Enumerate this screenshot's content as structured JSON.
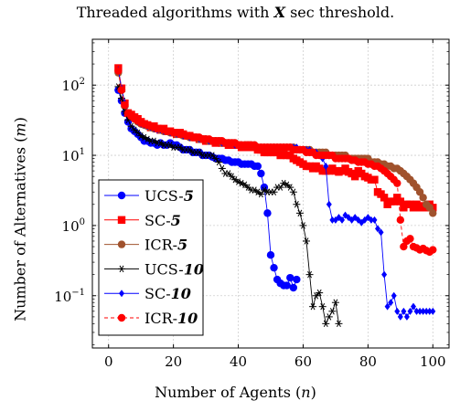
{
  "chart_data": {
    "type": "line",
    "title": {
      "before": "Threaded algorithms with ",
      "variable": "X",
      "after": " sec threshold."
    },
    "xlabel": {
      "text": "Number of Agents (",
      "var": "n",
      "close": ")"
    },
    "ylabel": {
      "text": "Number of Alternatives (",
      "var": "m",
      "close": ")"
    },
    "xlim": [
      -5,
      105
    ],
    "ylim": [
      0.018,
      450
    ],
    "yscale": "log",
    "xticks": [
      0,
      20,
      40,
      60,
      80,
      100
    ],
    "yticks": [
      {
        "value": 0.1,
        "base": "10",
        "exp": "−1"
      },
      {
        "value": 1,
        "base": "10",
        "exp": "0"
      },
      {
        "value": 10,
        "base": "10",
        "exp": "1"
      },
      {
        "value": 100,
        "base": "10",
        "exp": "2"
      }
    ],
    "grid": true,
    "legend_position": "bottom-left",
    "series": [
      {
        "name_prefix": "UCS-",
        "name_num": "5",
        "color": "#0000ff",
        "marker": "circle",
        "dashed": false,
        "x": [
          3,
          4,
          5,
          6,
          7,
          8,
          9,
          10,
          11,
          12,
          13,
          14,
          15,
          16,
          17,
          18,
          19,
          20,
          21,
          22,
          23,
          24,
          25,
          26,
          27,
          28,
          29,
          30,
          31,
          32,
          33,
          34,
          35,
          36,
          37,
          38,
          39,
          40,
          41,
          42,
          43,
          44,
          45,
          46,
          47,
          48,
          49,
          50,
          51,
          52,
          53,
          54,
          55,
          56,
          57,
          58
        ],
        "y": [
          85,
          60,
          40,
          30,
          24,
          22,
          20,
          18,
          16,
          16,
          15,
          15,
          14,
          15,
          14,
          14,
          15,
          14,
          14,
          13,
          12,
          12,
          12,
          11,
          11,
          11,
          10,
          10,
          10,
          9.5,
          9,
          9,
          9,
          8.5,
          8.5,
          8,
          8,
          8,
          7.5,
          7.5,
          7.5,
          7.5,
          7,
          7,
          5.5,
          3.5,
          1.5,
          0.38,
          0.25,
          0.17,
          0.15,
          0.14,
          0.14,
          0.18,
          0.13,
          0.17
        ]
      },
      {
        "name_prefix": "SC-",
        "name_num": "5",
        "color": "#ff0000",
        "marker": "square",
        "dashed": false,
        "x": [
          3,
          4,
          5,
          6,
          7,
          8,
          9,
          10,
          11,
          12,
          13,
          14,
          15,
          16,
          17,
          18,
          19,
          20,
          21,
          22,
          23,
          24,
          25,
          26,
          27,
          28,
          29,
          30,
          31,
          32,
          33,
          34,
          35,
          36,
          37,
          38,
          39,
          40,
          41,
          42,
          43,
          44,
          45,
          46,
          47,
          48,
          49,
          50,
          51,
          52,
          53,
          54,
          55,
          56,
          57,
          58,
          59,
          60,
          61,
          62,
          63,
          64,
          65,
          66,
          67,
          68,
          69,
          70,
          71,
          72,
          73,
          74,
          75,
          76,
          77,
          78,
          79,
          80,
          81,
          82,
          83,
          84,
          85,
          86,
          87,
          88,
          89,
          90,
          91,
          92,
          93,
          94,
          95,
          96,
          97,
          98,
          99,
          100
        ],
        "y": [
          175,
          90,
          55,
          40,
          38,
          35,
          33,
          30,
          28,
          27,
          25,
          26,
          24,
          23,
          24,
          22,
          22,
          21,
          20,
          21,
          20,
          19,
          19,
          18,
          18,
          17,
          17,
          16,
          16,
          16,
          15,
          16,
          15,
          15,
          14,
          15,
          14,
          14,
          13,
          13,
          14,
          13,
          13,
          12,
          12,
          11,
          11,
          11,
          11,
          11,
          10,
          11,
          10,
          10,
          9,
          8.5,
          8,
          7.5,
          7,
          7,
          6.5,
          7,
          6.5,
          6,
          6,
          6,
          6.5,
          6,
          5.8,
          6,
          6.5,
          5.8,
          5.5,
          5,
          6,
          5.5,
          5,
          4.8,
          4.5,
          4.5,
          3,
          2.8,
          2.5,
          2,
          2.2,
          2.2,
          2.5,
          2.2,
          1.8,
          2,
          2,
          1.8,
          2,
          1.8,
          1.9,
          1.8,
          2,
          1.8
        ]
      },
      {
        "name_prefix": "ICR-",
        "name_num": "5",
        "color": "#a0522d",
        "marker": "circle",
        "dashed": false,
        "x": [
          3,
          4,
          5,
          6,
          7,
          8,
          9,
          10,
          11,
          12,
          13,
          14,
          15,
          16,
          17,
          18,
          19,
          20,
          21,
          22,
          23,
          24,
          25,
          26,
          27,
          28,
          29,
          30,
          31,
          32,
          33,
          34,
          35,
          36,
          37,
          38,
          39,
          40,
          41,
          42,
          43,
          44,
          45,
          46,
          47,
          48,
          49,
          50,
          51,
          52,
          53,
          54,
          55,
          56,
          57,
          58,
          59,
          60,
          61,
          62,
          63,
          64,
          65,
          66,
          67,
          68,
          69,
          70,
          71,
          72,
          73,
          74,
          75,
          76,
          77,
          78,
          79,
          80,
          81,
          82,
          83,
          84,
          85,
          86,
          87,
          88,
          89,
          90,
          91,
          92,
          93,
          94,
          95,
          96,
          97,
          98,
          99,
          100
        ],
        "y": [
          150,
          85,
          50,
          40,
          35,
          33,
          30,
          28,
          27,
          26,
          25,
          24,
          24,
          23,
          22,
          22,
          21,
          21,
          20,
          20,
          19,
          19,
          18,
          18,
          18,
          17,
          17,
          17,
          16,
          16,
          16,
          16,
          15,
          15,
          15,
          15,
          15,
          14,
          14,
          14,
          14,
          14,
          14,
          13,
          13,
          13,
          13,
          13,
          13,
          13,
          13,
          13,
          13,
          13,
          13,
          12,
          12,
          12,
          12,
          12,
          11,
          11,
          11,
          11,
          11,
          10,
          10,
          10,
          10,
          10,
          10,
          9,
          9,
          9,
          9,
          9,
          9,
          9,
          8,
          8,
          8,
          7.5,
          7.5,
          7,
          7,
          6.5,
          6.5,
          6,
          5.5,
          5,
          4.5,
          4,
          3.5,
          3,
          2.5,
          2,
          1.8,
          1.5
        ]
      },
      {
        "name_prefix": "UCS-",
        "name_num": "10",
        "color": "#000000",
        "marker": "star",
        "dashed": false,
        "x": [
          3,
          4,
          5,
          6,
          7,
          8,
          9,
          10,
          11,
          12,
          13,
          14,
          15,
          16,
          17,
          18,
          19,
          20,
          21,
          22,
          23,
          24,
          25,
          26,
          27,
          28,
          29,
          30,
          31,
          32,
          33,
          34,
          35,
          36,
          37,
          38,
          39,
          40,
          41,
          42,
          43,
          44,
          45,
          46,
          47,
          48,
          49,
          50,
          51,
          52,
          53,
          54,
          55,
          56,
          57,
          58,
          59,
          60,
          61,
          62,
          63,
          64,
          65,
          66,
          67,
          68,
          69,
          70,
          71
        ],
        "y": [
          95,
          65,
          42,
          32,
          26,
          23,
          21,
          19,
          18,
          17,
          16,
          16,
          15,
          15,
          14,
          14,
          14,
          13,
          13,
          13,
          12,
          12,
          12,
          11,
          11,
          11,
          10,
          10,
          10,
          10,
          9,
          8,
          6.5,
          5.5,
          5.5,
          5,
          4.5,
          4.2,
          4,
          3.8,
          3.5,
          3.2,
          3.2,
          3,
          2.8,
          3.2,
          3,
          3,
          3,
          3.5,
          3.5,
          4,
          3.8,
          3.5,
          3,
          2,
          1.5,
          1,
          0.6,
          0.2,
          0.07,
          0.1,
          0.11,
          0.07,
          0.04,
          0.05,
          0.06,
          0.08,
          0.04
        ]
      },
      {
        "name_prefix": "SC-",
        "name_num": "10",
        "color": "#0000ff",
        "marker": "diamond",
        "dashed": false,
        "x": [
          3,
          4,
          5,
          6,
          7,
          8,
          9,
          10,
          11,
          12,
          13,
          14,
          15,
          16,
          17,
          18,
          19,
          20,
          21,
          22,
          23,
          24,
          25,
          26,
          27,
          28,
          29,
          30,
          31,
          32,
          33,
          34,
          35,
          36,
          37,
          38,
          39,
          40,
          41,
          42,
          43,
          44,
          45,
          46,
          47,
          48,
          49,
          50,
          51,
          52,
          53,
          54,
          55,
          56,
          57,
          58,
          59,
          60,
          61,
          62,
          63,
          64,
          65,
          66,
          67,
          68,
          69,
          70,
          71,
          72,
          73,
          74,
          75,
          76,
          77,
          78,
          79,
          80,
          81,
          82,
          83,
          84,
          85,
          86,
          87,
          88,
          89,
          90,
          91,
          92,
          93,
          94,
          95,
          96,
          97,
          98,
          99,
          100
        ],
        "y": [
          165,
          90,
          55,
          40,
          36,
          33,
          30,
          28,
          27,
          26,
          25,
          24,
          23,
          23,
          22,
          22,
          21,
          21,
          20,
          20,
          19,
          19,
          18,
          18,
          18,
          17,
          17,
          17,
          16,
          16,
          16,
          16,
          15,
          15,
          15,
          15,
          14,
          14,
          14,
          14,
          14,
          14,
          14,
          13,
          13,
          13,
          13,
          13,
          13,
          13,
          13,
          13,
          13,
          13,
          13,
          13,
          12,
          12,
          12,
          12,
          11,
          11,
          10,
          9,
          7,
          2,
          1.2,
          1.2,
          1.3,
          1.2,
          1.4,
          1.3,
          1.2,
          1.3,
          1.2,
          1.1,
          1.2,
          1.3,
          1.2,
          1.2,
          0.9,
          0.8,
          0.2,
          0.07,
          0.08,
          0.1,
          0.06,
          0.05,
          0.06,
          0.05,
          0.06,
          0.07,
          0.06,
          0.06,
          0.06,
          0.06,
          0.06,
          0.06
        ]
      },
      {
        "name_prefix": "ICR-",
        "name_num": "10",
        "color": "#ff0000",
        "marker": "circle",
        "dashed": true,
        "x": [
          3,
          4,
          5,
          6,
          7,
          8,
          9,
          10,
          11,
          12,
          13,
          14,
          15,
          16,
          17,
          18,
          19,
          20,
          21,
          22,
          23,
          24,
          25,
          26,
          27,
          28,
          29,
          30,
          31,
          32,
          33,
          34,
          35,
          36,
          37,
          38,
          39,
          40,
          41,
          42,
          43,
          44,
          45,
          46,
          47,
          48,
          49,
          50,
          51,
          52,
          53,
          54,
          55,
          56,
          57,
          58,
          59,
          60,
          61,
          62,
          63,
          64,
          65,
          66,
          67,
          68,
          69,
          70,
          71,
          72,
          73,
          74,
          75,
          76,
          77,
          78,
          79,
          80,
          81,
          82,
          83,
          84,
          85,
          86,
          87,
          88,
          89,
          90,
          91,
          92,
          93,
          94,
          95,
          96,
          97,
          98,
          99,
          100
        ],
        "y": [
          160,
          85,
          52,
          40,
          36,
          33,
          31,
          29,
          28,
          27,
          26,
          25,
          24,
          24,
          23,
          22,
          22,
          21,
          21,
          20,
          20,
          19,
          19,
          18,
          18,
          18,
          17,
          17,
          17,
          16,
          16,
          16,
          16,
          15,
          15,
          15,
          15,
          14,
          14,
          14,
          14,
          14,
          14,
          13,
          13,
          13,
          13,
          13,
          13,
          13,
          13,
          13,
          13,
          13,
          12,
          12,
          12,
          12,
          11,
          11,
          11,
          10,
          10,
          10,
          10,
          10,
          10,
          9,
          9,
          9,
          9,
          9,
          8.5,
          8.5,
          8,
          8,
          8,
          7.5,
          7.5,
          7,
          7,
          6.5,
          6,
          5.5,
          5,
          4.5,
          4,
          1.2,
          0.5,
          0.6,
          0.65,
          0.5,
          0.48,
          0.45,
          0.47,
          0.44,
          0.42,
          0.45
        ]
      }
    ]
  }
}
